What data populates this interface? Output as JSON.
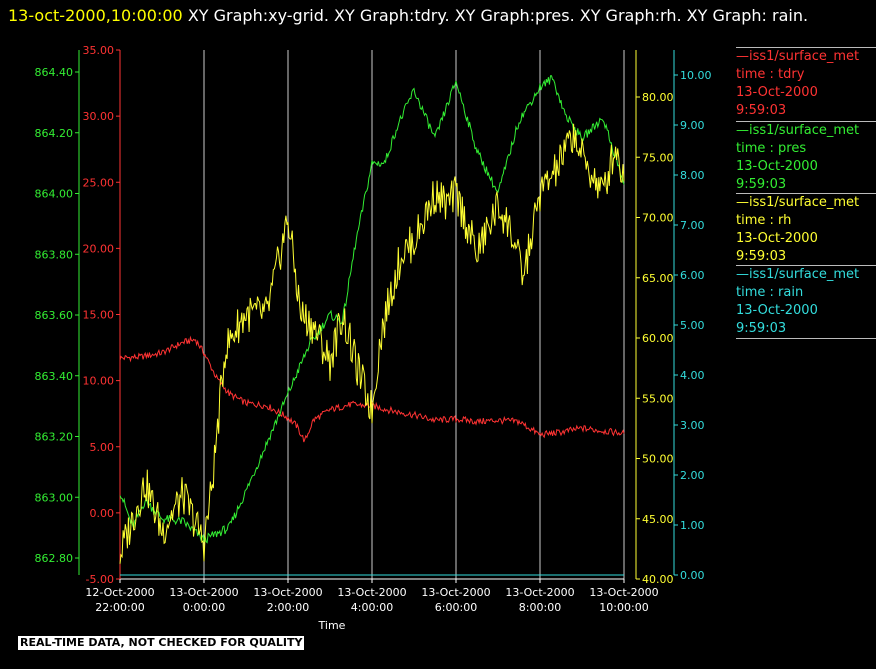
{
  "title": {
    "timestamp": "13-oct-2000,10:00:00",
    "text": "XY Graph:xy-grid.  XY Graph:tdry.  XY Graph:pres.  XY Graph:rh.  XY Graph: rain."
  },
  "note": "REAL-TIME DATA, NOT CHECKED FOR QUALITY",
  "legend": [
    {
      "line1": "—iss1/surface_met",
      "line2": "time : tdry",
      "line3": "13-Oct-2000",
      "line4": "9:59:03",
      "color": "#ff3333"
    },
    {
      "line1": "—iss1/surface_met",
      "line2": "time : pres",
      "line3": "13-Oct-2000",
      "line4": "9:59:03",
      "color": "#33ee33"
    },
    {
      "line1": "—iss1/surface_met",
      "line2": "time : rh",
      "line3": "13-Oct-2000",
      "line4": "9:59:03",
      "color": "#ffff33"
    },
    {
      "line1": "—iss1/surface_met",
      "line2": "time : rain",
      "line3": "13-Oct-2000",
      "line4": "9:59:03",
      "color": "#33dddd"
    }
  ],
  "chart_data": {
    "type": "line",
    "xlabel": "Time",
    "xlim": [
      "12-Oct-2000 22:00:00",
      "13-Oct-2000 10:00:00"
    ],
    "x_ticks": [
      {
        "l1": "12-Oct-2000",
        "l2": "22:00:00"
      },
      {
        "l1": "13-Oct-2000",
        "l2": "0:00:00"
      },
      {
        "l1": "13-Oct-2000",
        "l2": "2:00:00"
      },
      {
        "l1": "13-Oct-2000",
        "l2": "4:00:00"
      },
      {
        "l1": "13-Oct-2000",
        "l2": "6:00:00"
      },
      {
        "l1": "13-Oct-2000",
        "l2": "8:00:00"
      },
      {
        "l1": "13-Oct-2000",
        "l2": "10:00:00"
      }
    ],
    "grid": "vertical",
    "axes": {
      "tdry": {
        "color": "#ff3333",
        "ylim": [
          -5,
          35
        ],
        "ticks": [
          "-5.00",
          "0.00",
          "5.00",
          "10.00",
          "15.00",
          "20.00",
          "25.00",
          "30.00",
          "35.00"
        ]
      },
      "pres": {
        "color": "#33ee33",
        "ylim": [
          862.7,
          864.5
        ],
        "ticks": [
          "862.80",
          "863.00",
          "863.20",
          "863.40",
          "863.60",
          "863.80",
          "864.00",
          "864.20",
          "864.40"
        ]
      },
      "rh": {
        "color": "#ffff33",
        "ylim": [
          40,
          85
        ],
        "ticks": [
          "40.00",
          "45.00",
          "50.00",
          "55.00",
          "60.00",
          "65.00",
          "70.00",
          "75.00",
          "80.00"
        ]
      },
      "rain": {
        "color": "#33dddd",
        "ylim": [
          0,
          10.2
        ],
        "ticks": [
          "0.00",
          "1.00",
          "2.00",
          "3.00",
          "4.00",
          "5.00",
          "6.00",
          "7.00",
          "8.00",
          "9.00",
          "10.00"
        ]
      }
    },
    "series": [
      {
        "key": "tdry",
        "color": "#ff3333",
        "hours": [
          22,
          22.5,
          23,
          23.5,
          23.8,
          24,
          24.3,
          24.6,
          25,
          25.5,
          26,
          26.2,
          26.4,
          26.6,
          27,
          27.5,
          28,
          28.5,
          29,
          29.5,
          30,
          30.5,
          31,
          31.5,
          32,
          32.5,
          33,
          33.5,
          34
        ],
        "values": [
          11.7,
          11.8,
          12.1,
          12.9,
          13.1,
          12.1,
          10.2,
          9.0,
          8.3,
          8.1,
          7.2,
          6.6,
          5.4,
          7.0,
          7.8,
          8.2,
          8.1,
          7.7,
          7.4,
          7.0,
          7.1,
          6.9,
          7.0,
          6.9,
          5.9,
          6.1,
          6.4,
          6.2,
          6.0
        ]
      },
      {
        "key": "pres",
        "color": "#33ee33",
        "hours": [
          22,
          22.3,
          22.6,
          23,
          23.5,
          24,
          24.3,
          24.6,
          25,
          25.5,
          26,
          26.5,
          27,
          27.3,
          27.6,
          28,
          28.3,
          28.6,
          29,
          29.5,
          30,
          30.5,
          31,
          31.5,
          32,
          32.3,
          32.6,
          33,
          33.5,
          34
        ],
        "values": [
          863.02,
          862.9,
          862.99,
          862.93,
          862.92,
          862.86,
          862.88,
          862.9,
          863.02,
          863.18,
          863.34,
          863.5,
          863.6,
          863.58,
          863.83,
          864.1,
          864.1,
          864.22,
          864.34,
          864.18,
          864.37,
          864.14,
          864.0,
          864.24,
          864.35,
          864.38,
          864.26,
          864.18,
          864.25,
          864.03
        ]
      },
      {
        "key": "rh",
        "color": "#ffff33",
        "hours": [
          22,
          22.3,
          22.6,
          23,
          23.5,
          24,
          24.2,
          24.5,
          24.8,
          25,
          25.5,
          26,
          26.3,
          26.6,
          27,
          27.3,
          27.6,
          28,
          28.2,
          28.4,
          28.7,
          29,
          29.5,
          29.8,
          30,
          30.5,
          31,
          31.3,
          31.6,
          32,
          32.4,
          32.8,
          33,
          33.5,
          33.8,
          34
        ],
        "values": [
          42,
          45,
          48,
          44,
          47,
          43,
          48,
          59,
          61,
          62,
          62,
          70,
          62,
          61,
          58,
          62,
          58,
          54,
          60,
          63,
          67,
          68,
          72,
          71,
          72,
          67,
          71,
          69,
          65,
          72,
          74,
          77,
          75,
          72,
          76,
          73
        ]
      },
      {
        "key": "rain",
        "color": "#33dddd",
        "hours": [
          22,
          34
        ],
        "values": [
          0.0,
          0.0
        ]
      }
    ]
  }
}
